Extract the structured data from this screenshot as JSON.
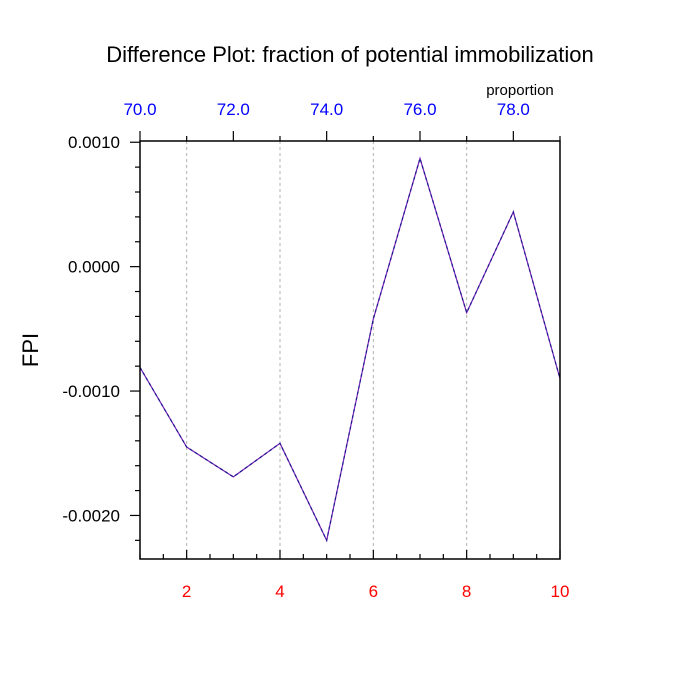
{
  "chart_data": {
    "type": "line",
    "title": "Difference Plot: fraction of potential immobilization",
    "ylabel": "FPI",
    "top_axis_label": "proportion",
    "x": [
      1,
      2,
      3,
      4,
      5,
      6,
      7,
      8,
      9,
      10
    ],
    "xlim": [
      1,
      10
    ],
    "ylim": [
      -0.00235,
      0.00101
    ],
    "series": [
      {
        "values": [
          -0.00081,
          -0.00145,
          -0.00169,
          -0.00142,
          -0.0022,
          -0.00042,
          0.00087,
          -0.00037,
          0.00044,
          -0.0009
        ]
      }
    ],
    "bottom_ticks": [
      {
        "value": 2,
        "label": "2"
      },
      {
        "value": 4,
        "label": "4"
      },
      {
        "value": 6,
        "label": "6"
      },
      {
        "value": 8,
        "label": "8"
      },
      {
        "value": 10,
        "label": "10"
      }
    ],
    "top_ticks": [
      {
        "value": 1,
        "label": "70.0"
      },
      {
        "value": 3,
        "label": "72.0"
      },
      {
        "value": 5,
        "label": "74.0"
      },
      {
        "value": 7,
        "label": "76.0"
      },
      {
        "value": 9,
        "label": "78.0"
      }
    ],
    "y_ticks": [
      {
        "value": 0.001,
        "label": "0.0010"
      },
      {
        "value": 0.0,
        "label": "0.0000"
      },
      {
        "value": -0.001,
        "label": "-0.0010"
      },
      {
        "value": -0.002,
        "label": "-0.0020"
      }
    ],
    "vertical_grid_at": [
      2,
      4,
      6,
      8
    ],
    "grid": "vertical dashed",
    "colors": {
      "line": "#7a1fb8",
      "line_dash": "#1a1a8c",
      "bottom_tick_labels": "#ff0000",
      "top_tick_labels": "#0000ff",
      "grid": "#b0b0b0",
      "axes": "#000000"
    }
  }
}
